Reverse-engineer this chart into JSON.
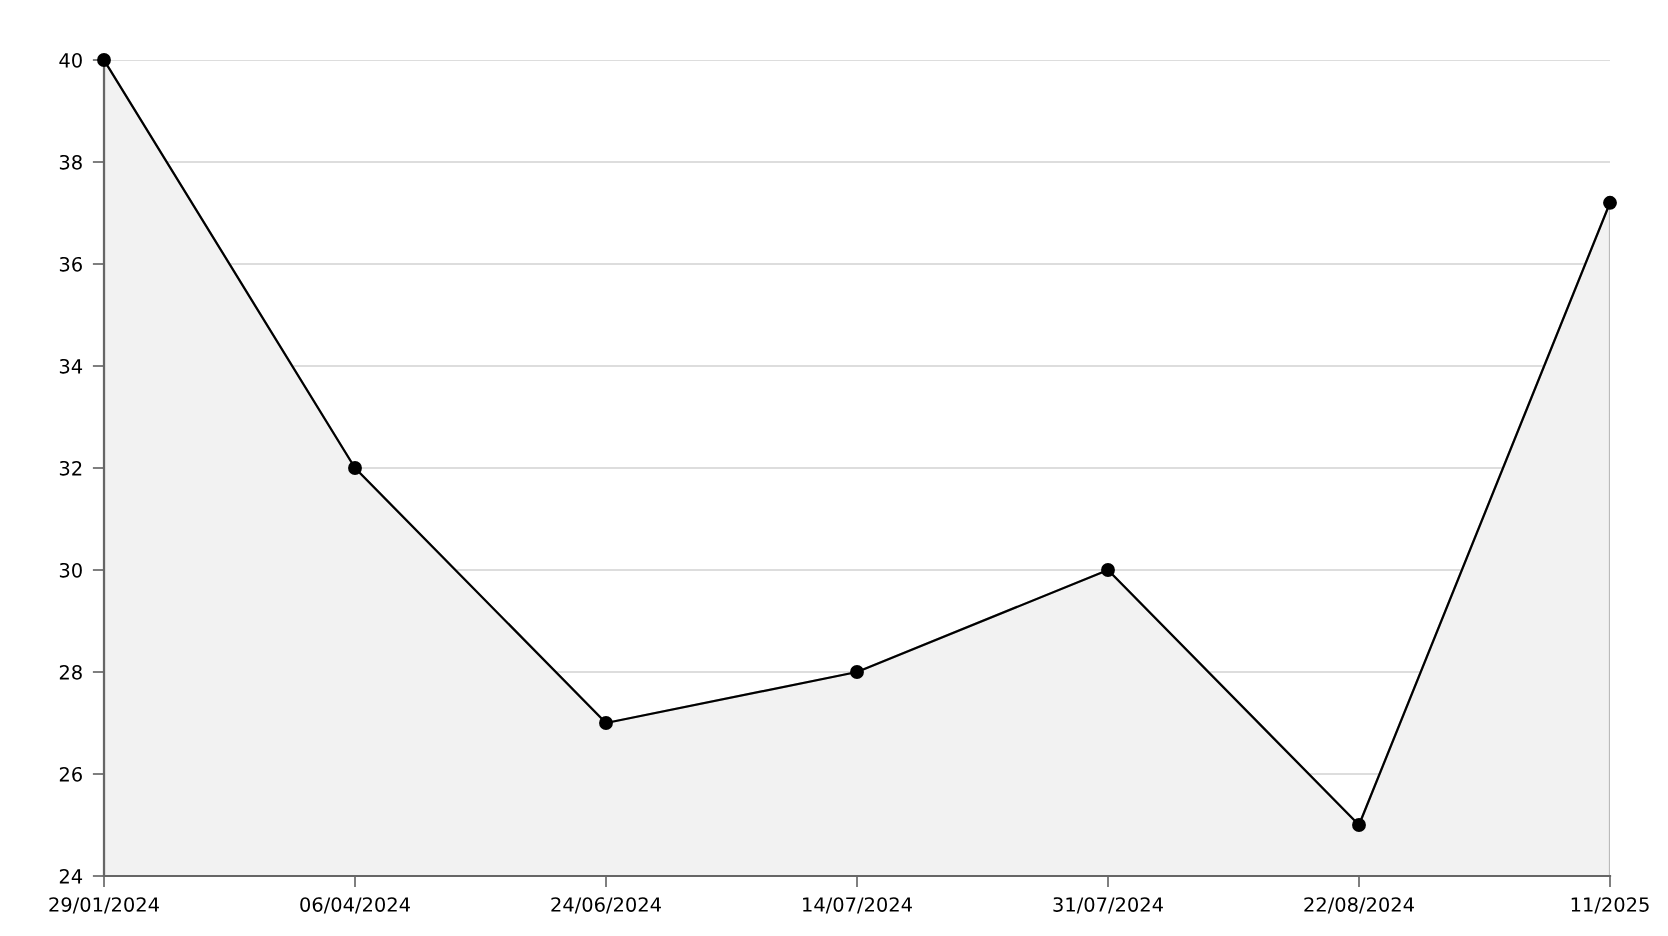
{
  "chart_data": {
    "type": "area",
    "categories": [
      "29/01/2024",
      "06/04/2024",
      "24/06/2024",
      "14/07/2024",
      "31/07/2024",
      "22/08/2024",
      "11/2025"
    ],
    "series": [
      {
        "color": "#000000",
        "values": [
          40,
          32,
          27,
          28,
          30,
          25,
          37.2
        ]
      }
    ],
    "ylim": [
      24,
      40
    ],
    "yticks": [
      24,
      26,
      28,
      30,
      32,
      34,
      36,
      38,
      40
    ],
    "grid": "y",
    "marker": "circle",
    "line_style": "solid",
    "legend": false
  }
}
